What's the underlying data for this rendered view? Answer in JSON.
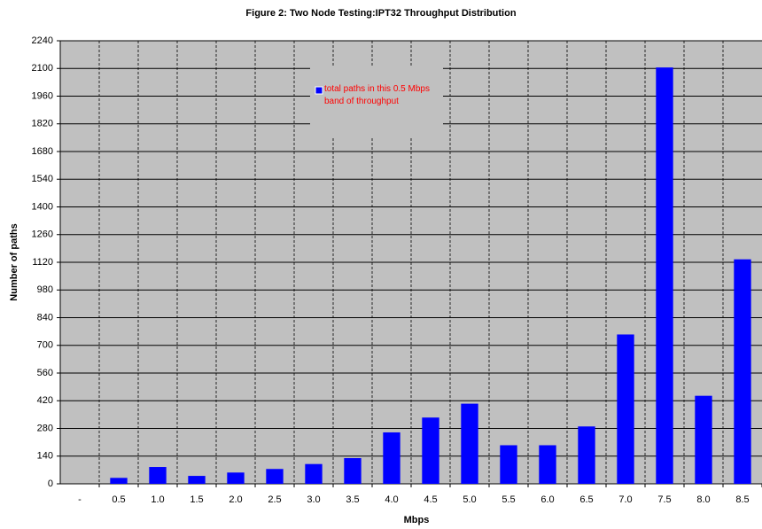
{
  "chart_data": {
    "type": "bar",
    "title": "Figure 2: Two Node Testing:IPT32 Throughput Distribution",
    "x_label": "Mbps",
    "y_label": "Number of paths",
    "categories": [
      "-",
      "0.5",
      "1.0",
      "1.5",
      "2.0",
      "2.5",
      "3.0",
      "3.5",
      "4.0",
      "4.5",
      "5.0",
      "5.5",
      "6.0",
      "6.5",
      "7.0",
      "7.5",
      "8.0",
      "8.5"
    ],
    "series": [
      {
        "name": "total paths in this 0.5 Mbps band of throughput",
        "color": "#0000ff",
        "values": [
          0,
          30,
          85,
          40,
          57,
          75,
          100,
          130,
          260,
          335,
          405,
          195,
          195,
          290,
          755,
          2105,
          445,
          1135
        ]
      }
    ],
    "ylim": [
      0,
      2240
    ],
    "yticks": [
      0,
      140,
      280,
      420,
      560,
      700,
      840,
      980,
      1120,
      1260,
      1400,
      1540,
      1680,
      1820,
      1960,
      2100,
      2240
    ],
    "grid": true,
    "legend": "top-center"
  }
}
